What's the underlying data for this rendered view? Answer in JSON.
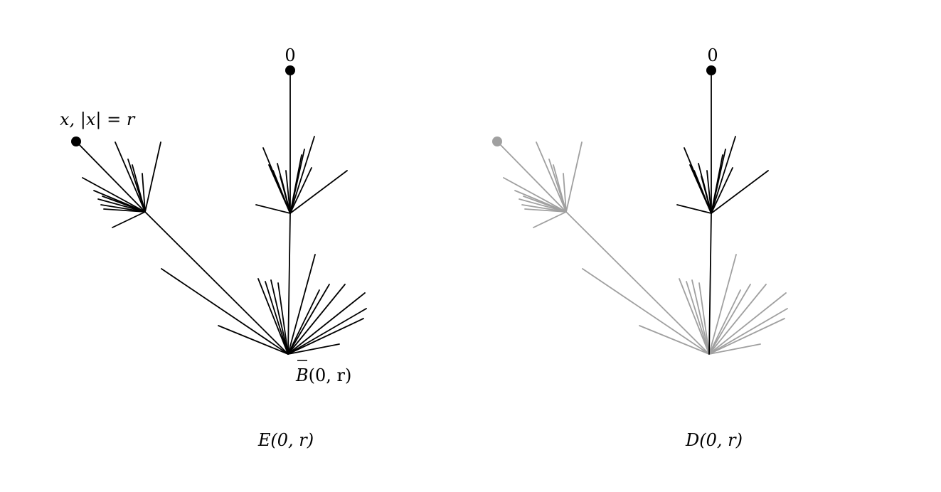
{
  "left_panel": {
    "root_label": "0",
    "point_label": "x, |x| = r",
    "ball_label_letter": "B",
    "ball_label_args": "(0, r)",
    "caption": "E(0, r)",
    "line_color": "#000000"
  },
  "right_panel": {
    "root_label": "0",
    "caption": "D(0, r)",
    "line_color": "#000000",
    "faded_color": "#a0a0a0"
  }
}
